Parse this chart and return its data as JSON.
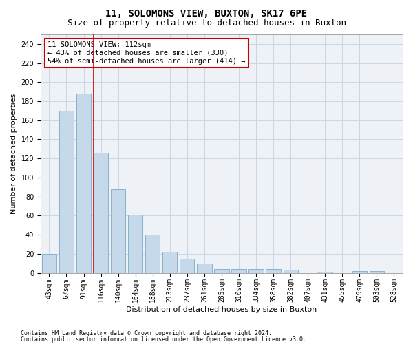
{
  "title1": "11, SOLOMONS VIEW, BUXTON, SK17 6PE",
  "title2": "Size of property relative to detached houses in Buxton",
  "xlabel": "Distribution of detached houses by size in Buxton",
  "ylabel": "Number of detached properties",
  "categories": [
    "43sqm",
    "67sqm",
    "91sqm",
    "116sqm",
    "140sqm",
    "164sqm",
    "188sqm",
    "213sqm",
    "237sqm",
    "261sqm",
    "285sqm",
    "310sqm",
    "334sqm",
    "358sqm",
    "382sqm",
    "407sqm",
    "431sqm",
    "455sqm",
    "479sqm",
    "503sqm",
    "528sqm"
  ],
  "values": [
    20,
    170,
    188,
    126,
    88,
    61,
    40,
    22,
    15,
    10,
    4,
    4,
    4,
    4,
    3,
    0,
    1,
    0,
    2,
    2,
    0
  ],
  "bar_color": "#c6d9ea",
  "bar_edge_color": "#7aabcc",
  "vline_index": 3,
  "vline_color": "#cc0000",
  "ylim_max": 250,
  "yticks": [
    0,
    20,
    40,
    60,
    80,
    100,
    120,
    140,
    160,
    180,
    200,
    220,
    240
  ],
  "annotation_line1": "11 SOLOMONS VIEW: 112sqm",
  "annotation_line2": "← 43% of detached houses are smaller (330)",
  "annotation_line3": "54% of semi-detached houses are larger (414) →",
  "annotation_box_color": "#cc0000",
  "footer1": "Contains HM Land Registry data © Crown copyright and database right 2024.",
  "footer2": "Contains public sector information licensed under the Open Government Licence v3.0.",
  "bg_color": "#eef2f7",
  "grid_color": "#c8d8e8",
  "title1_fontsize": 10,
  "title2_fontsize": 9,
  "ylabel_fontsize": 8,
  "xlabel_fontsize": 8,
  "tick_fontsize": 7,
  "footer_fontsize": 6
}
